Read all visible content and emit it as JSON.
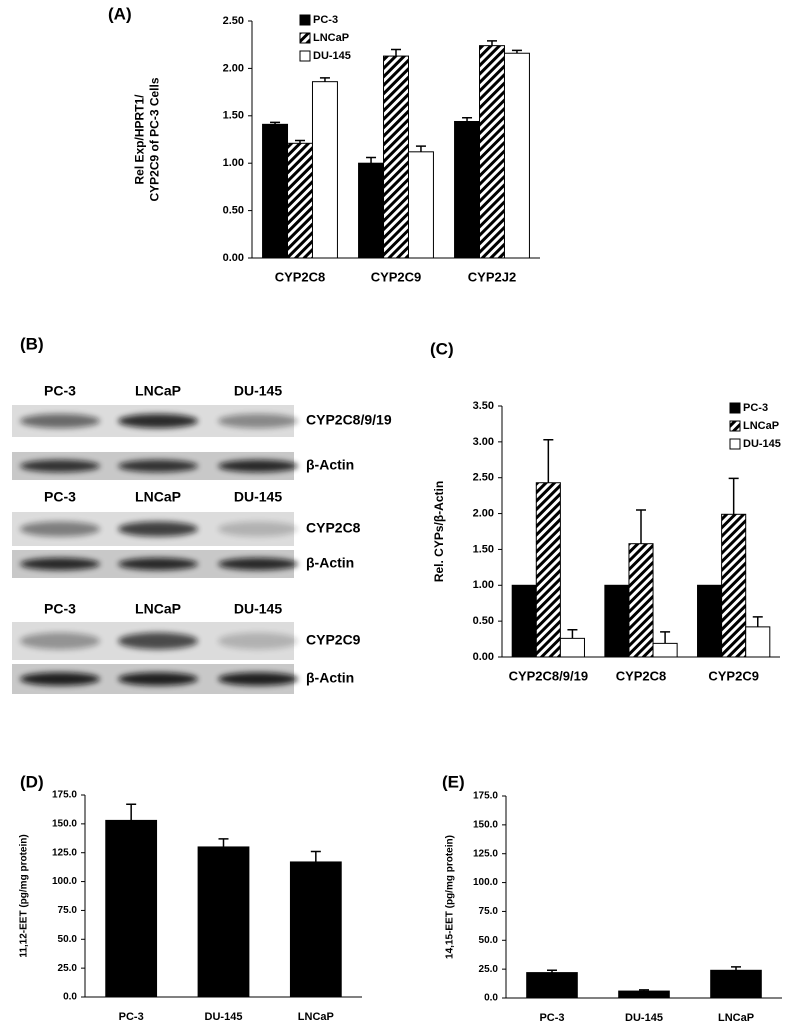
{
  "chart_data": [
    {
      "type": "bar",
      "panel_label": "(A)",
      "ylabel": [
        "Rel Exp/HPRT1/",
        "CYP2C9 of PC-3 Cells"
      ],
      "categories": [
        "CYP2C8",
        "CYP2C9",
        "CYP2J2"
      ],
      "series": [
        {
          "name": "PC-3",
          "color": "#000000",
          "values": [
            1.41,
            1.0,
            1.44
          ],
          "errors": [
            0.02,
            0.06,
            0.04
          ]
        },
        {
          "name": "LNCaP",
          "color": "#000000",
          "pattern": "hatch",
          "values": [
            1.21,
            2.13,
            2.24
          ],
          "errors": [
            0.03,
            0.07,
            0.05
          ]
        },
        {
          "name": "DU-145",
          "color": "#ffffff",
          "values": [
            1.86,
            1.12,
            2.16
          ],
          "errors": [
            0.04,
            0.06,
            0.03
          ]
        }
      ],
      "ylim": [
        0,
        2.5
      ],
      "yticks": [
        {
          "value": 0,
          "label": "0.00"
        },
        {
          "value": 0.5,
          "label": "0.50"
        },
        {
          "value": 1,
          "label": "1.00"
        },
        {
          "value": 1.5,
          "label": "1.50"
        },
        {
          "value": 2,
          "label": "2.00"
        },
        {
          "value": 2.5,
          "label": "2.50"
        }
      ],
      "legend": "top-left",
      "grid": false
    },
    {
      "type": "bar",
      "panel_label": "(C)",
      "ylabel": [
        "Rel. CYPs/β-Actin"
      ],
      "categories": [
        "CYP2C8/9/19",
        "CYP2C8",
        "CYP2C9"
      ],
      "series": [
        {
          "name": "PC-3",
          "color": "#000000",
          "values": [
            1.0,
            1.0,
            1.0
          ],
          "errors": [
            null,
            null,
            null
          ]
        },
        {
          "name": "LNCaP",
          "color": "#000000",
          "pattern": "hatch",
          "values": [
            2.43,
            1.58,
            1.99
          ],
          "errors": [
            0.6,
            0.47,
            0.5
          ]
        },
        {
          "name": "DU-145",
          "color": "#ffffff",
          "values": [
            0.26,
            0.19,
            0.42
          ],
          "errors": [
            0.12,
            0.16,
            0.14
          ]
        }
      ],
      "ylim": [
        0,
        3.5
      ],
      "yticks": [
        {
          "value": 0,
          "label": "0.00"
        },
        {
          "value": 0.5,
          "label": "0.50"
        },
        {
          "value": 1,
          "label": "1.00"
        },
        {
          "value": 1.5,
          "label": "1.50"
        },
        {
          "value": 2,
          "label": "2.00"
        },
        {
          "value": 2.5,
          "label": "2.50"
        },
        {
          "value": 3,
          "label": "3.00"
        },
        {
          "value": 3.5,
          "label": "3.50"
        }
      ],
      "legend": "top-right",
      "grid": false
    },
    {
      "type": "bar",
      "panel_label": "(D)",
      "ylabel": [
        "11,12-EET (pg/mg protein)"
      ],
      "categories": [
        "PC-3",
        "DU-145",
        "LNCaP"
      ],
      "series": [
        {
          "color": "#000000",
          "values": [
            153,
            130,
            117
          ],
          "errors": [
            14,
            7,
            9
          ]
        }
      ],
      "ylim": [
        0,
        175
      ],
      "yticks": [
        {
          "value": 0,
          "label": "0.0"
        },
        {
          "value": 25,
          "label": "25.0"
        },
        {
          "value": 50,
          "label": "50.0"
        },
        {
          "value": 75,
          "label": "75.0"
        },
        {
          "value": 100,
          "label": "100.0"
        },
        {
          "value": 125,
          "label": "125.0"
        },
        {
          "value": 150,
          "label": "150.0"
        },
        {
          "value": 175,
          "label": "175.0"
        }
      ],
      "grid": false
    },
    {
      "type": "bar",
      "panel_label": "(E)",
      "ylabel": [
        "14,15-EET (pg/mg protein)"
      ],
      "categories": [
        "PC-3",
        "DU-145",
        "LNCaP"
      ],
      "series": [
        {
          "color": "#000000",
          "values": [
            22,
            6,
            24
          ],
          "errors": [
            2,
            1,
            3
          ]
        }
      ],
      "ylim": [
        0,
        175
      ],
      "yticks": [
        {
          "value": 0,
          "label": "0.0"
        },
        {
          "value": 25,
          "label": "25.0"
        },
        {
          "value": 50,
          "label": "50.0"
        },
        {
          "value": 75,
          "label": "75.0"
        },
        {
          "value": 100,
          "label": "100.0"
        },
        {
          "value": 125,
          "label": "125.0"
        },
        {
          "value": 150,
          "label": "150.0"
        },
        {
          "value": 175,
          "label": "175.0"
        }
      ],
      "grid": false
    }
  ],
  "blot": {
    "panel_label": "(B)",
    "panels": [
      {
        "lanes": [
          "PC-3",
          "LNCaP",
          "DU-145"
        ],
        "rows": [
          "CYP2C8/9/19",
          "β-Actin"
        ]
      },
      {
        "lanes": [
          "PC-3",
          "LNCaP",
          "DU-145"
        ],
        "rows": [
          "CYP2C8",
          "β-Actin"
        ]
      },
      {
        "lanes": [
          "PC-3",
          "LNCaP",
          "DU-145"
        ],
        "rows": [
          "CYP2C9",
          "β-Actin"
        ]
      }
    ]
  }
}
